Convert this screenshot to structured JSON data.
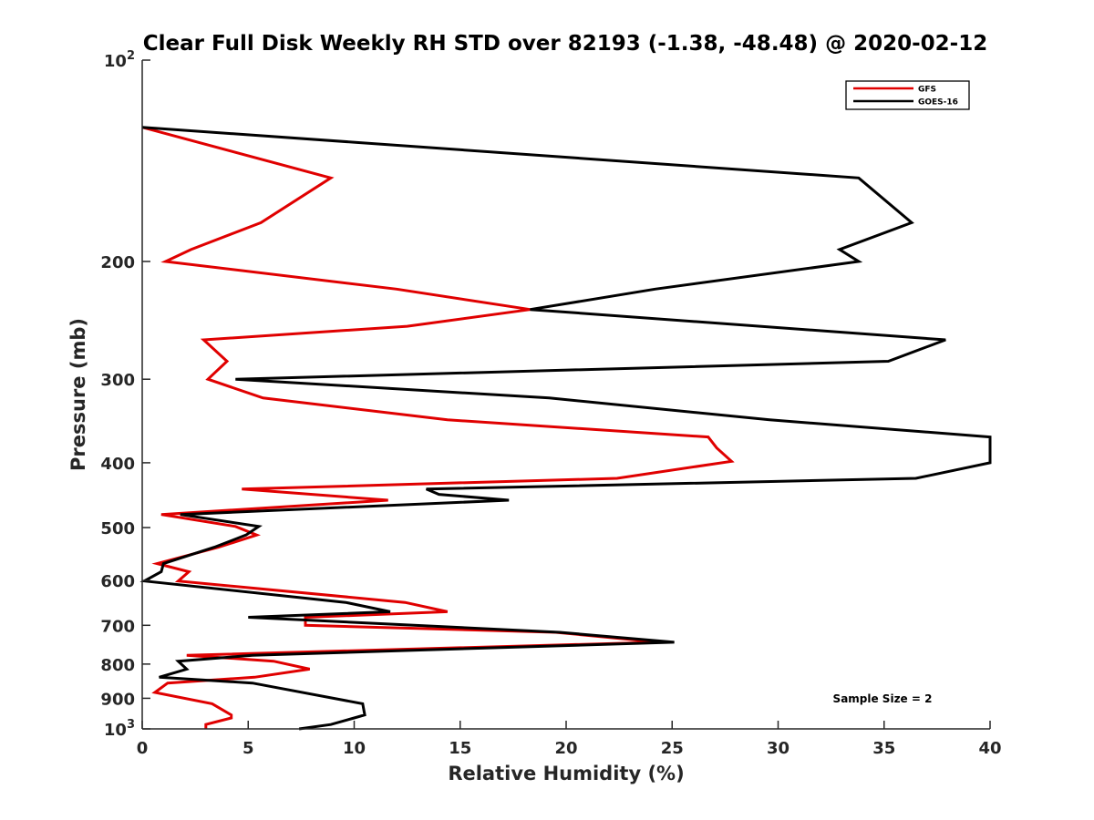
{
  "chart_data": {
    "type": "line",
    "title": "Clear Full Disk Weekly RH STD over 82193 (-1.38, -48.48) @ 2020-02-12",
    "xlabel": "Relative Humidity (%)",
    "ylabel": "Pressure (mb)",
    "xlim": [
      0,
      40
    ],
    "ylim": [
      100,
      1000
    ],
    "y_scale": "log",
    "y_reversed": true,
    "grid": false,
    "legend_position": "top-right",
    "x_ticks": [
      0,
      5,
      10,
      15,
      20,
      25,
      30,
      35,
      40
    ],
    "x_tick_labels": [
      "0",
      "5",
      "10",
      "15",
      "20",
      "25",
      "30",
      "35",
      "40"
    ],
    "y_ticks": [
      100,
      200,
      300,
      400,
      500,
      600,
      700,
      800,
      900,
      1000
    ],
    "y_tick_labels": [
      {
        "base": "10",
        "sup": "2"
      },
      {
        "base": "200",
        "sup": ""
      },
      {
        "base": "300",
        "sup": ""
      },
      {
        "base": "400",
        "sup": ""
      },
      {
        "base": "500",
        "sup": ""
      },
      {
        "base": "600",
        "sup": ""
      },
      {
        "base": "700",
        "sup": ""
      },
      {
        "base": "800",
        "sup": ""
      },
      {
        "base": "900",
        "sup": ""
      },
      {
        "base": "10",
        "sup": "3"
      }
    ],
    "annotation": "Sample Size = 2",
    "series": [
      {
        "name": "GFS",
        "color": "#e00000",
        "points": [
          [
            0.0,
            126
          ],
          [
            8.9,
            150
          ],
          [
            5.6,
            175
          ],
          [
            2.3,
            192
          ],
          [
            1.1,
            200
          ],
          [
            12.0,
            220
          ],
          [
            18.3,
            236
          ],
          [
            12.5,
            250
          ],
          [
            2.9,
            262
          ],
          [
            4.0,
            282
          ],
          [
            3.1,
            300
          ],
          [
            5.7,
            320
          ],
          [
            14.4,
            345
          ],
          [
            26.7,
            366
          ],
          [
            27.1,
            380
          ],
          [
            27.8,
            398
          ],
          [
            22.4,
            422
          ],
          [
            4.7,
            438
          ],
          [
            11.6,
            455
          ],
          [
            0.9,
            478
          ],
          [
            4.4,
            498
          ],
          [
            5.4,
            513
          ],
          [
            3.6,
            535
          ],
          [
            0.7,
            566
          ],
          [
            2.2,
            582
          ],
          [
            1.7,
            601
          ],
          [
            12.4,
            647
          ],
          [
            14.4,
            668
          ],
          [
            7.7,
            681
          ],
          [
            7.7,
            700
          ],
          [
            19.5,
            717
          ],
          [
            24.4,
            742
          ],
          [
            2.1,
            776
          ],
          [
            6.2,
            792
          ],
          [
            7.9,
            814
          ],
          [
            5.3,
            837
          ],
          [
            1.2,
            854
          ],
          [
            0.6,
            882
          ],
          [
            3.3,
            917
          ],
          [
            4.2,
            953
          ],
          [
            4.2,
            963
          ],
          [
            3.0,
            985
          ],
          [
            3.0,
            1000
          ]
        ]
      },
      {
        "name": "GOES-16",
        "color": "#000000",
        "points": [
          [
            0.0,
            126
          ],
          [
            33.8,
            150
          ],
          [
            36.3,
            175
          ],
          [
            32.9,
            192
          ],
          [
            33.8,
            200
          ],
          [
            24.2,
            220
          ],
          [
            18.3,
            236
          ],
          [
            37.9,
            262
          ],
          [
            35.2,
            282
          ],
          [
            4.4,
            300
          ],
          [
            19.2,
            320
          ],
          [
            29.6,
            345
          ],
          [
            40.0,
            366
          ],
          [
            40.0,
            400
          ],
          [
            36.5,
            422
          ],
          [
            13.4,
            438
          ],
          [
            14.0,
            446
          ],
          [
            17.3,
            455
          ],
          [
            1.8,
            478
          ],
          [
            5.5,
            498
          ],
          [
            4.9,
            513
          ],
          [
            3.4,
            535
          ],
          [
            1.0,
            566
          ],
          [
            0.9,
            582
          ],
          [
            0.1,
            601
          ],
          [
            9.6,
            647
          ],
          [
            11.7,
            668
          ],
          [
            5.0,
            681
          ],
          [
            19.7,
            717
          ],
          [
            25.1,
            742
          ],
          [
            5.2,
            776
          ],
          [
            1.7,
            792
          ],
          [
            2.1,
            814
          ],
          [
            0.8,
            837
          ],
          [
            5.2,
            854
          ],
          [
            10.4,
            917
          ],
          [
            10.5,
            953
          ],
          [
            10.0,
            963
          ],
          [
            8.9,
            985
          ],
          [
            7.4,
            1000
          ]
        ]
      }
    ]
  }
}
